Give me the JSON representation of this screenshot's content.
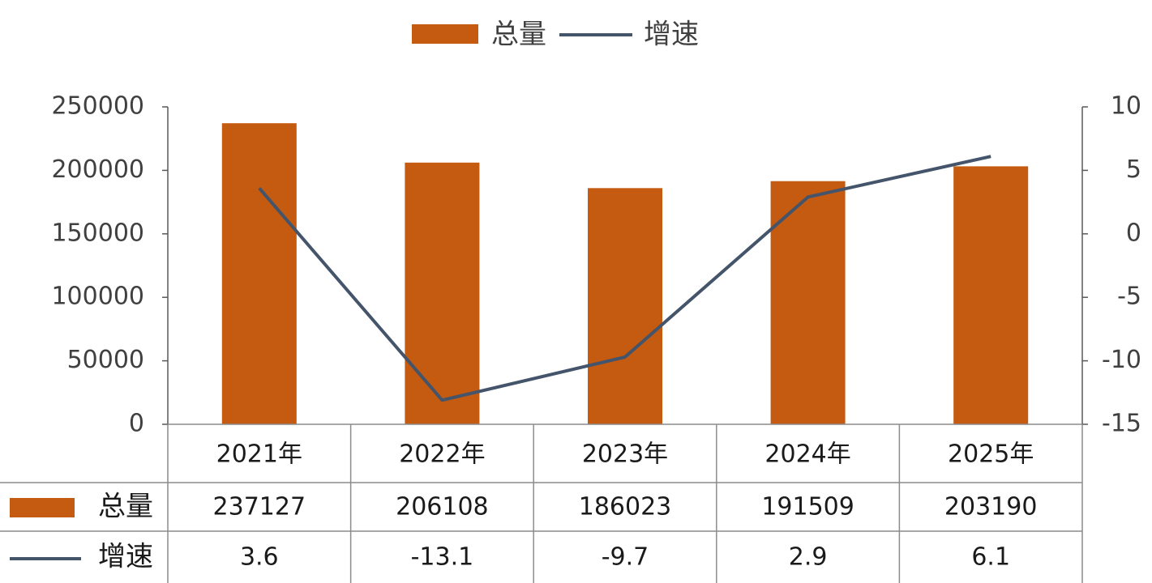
{
  "chart_data": {
    "type": "bar_line_table",
    "categories": [
      "2021年",
      "2022年",
      "2023年",
      "2024年",
      "2025年"
    ],
    "series": [
      {
        "name": "总量",
        "color": "#c55a11",
        "type": "bar",
        "values": [
          237127,
          206108,
          186023,
          191509,
          203190
        ]
      },
      {
        "name": "增速",
        "color": "#44546a",
        "type": "line",
        "axis": "y2",
        "values": [
          3.6,
          -13.1,
          -9.7,
          2.9,
          6.1
        ]
      }
    ],
    "ylim": [
      0,
      250000
    ],
    "yticks": [
      0,
      50000,
      100000,
      150000,
      200000,
      250000
    ],
    "y2lim": [
      -15,
      10
    ],
    "y2ticks": [
      -15,
      -10,
      -5,
      0,
      5,
      10
    ],
    "legend": "top"
  }
}
